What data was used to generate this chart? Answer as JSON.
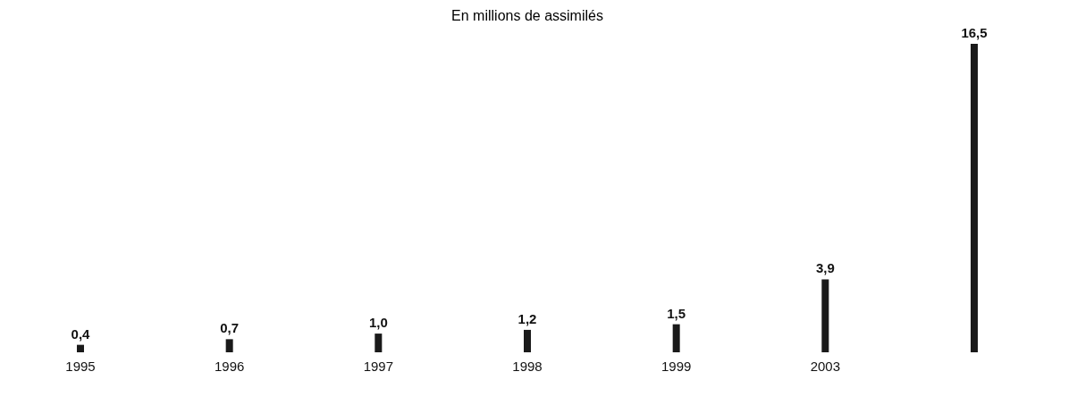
{
  "chart_data": {
    "type": "bar",
    "title": "En millions de assimilés",
    "categories": [
      "1995",
      "1996",
      "1997",
      "1998",
      "1999",
      "2003",
      null
    ],
    "values": [
      0.4,
      0.7,
      1.0,
      1.2,
      1.5,
      3.9,
      16.5
    ],
    "value_labels": [
      "0,4",
      "0,7",
      "1,0",
      "1,2",
      "1,5",
      "3,9",
      "16,5"
    ],
    "color": "#1a1a1a",
    "grid": false
  }
}
